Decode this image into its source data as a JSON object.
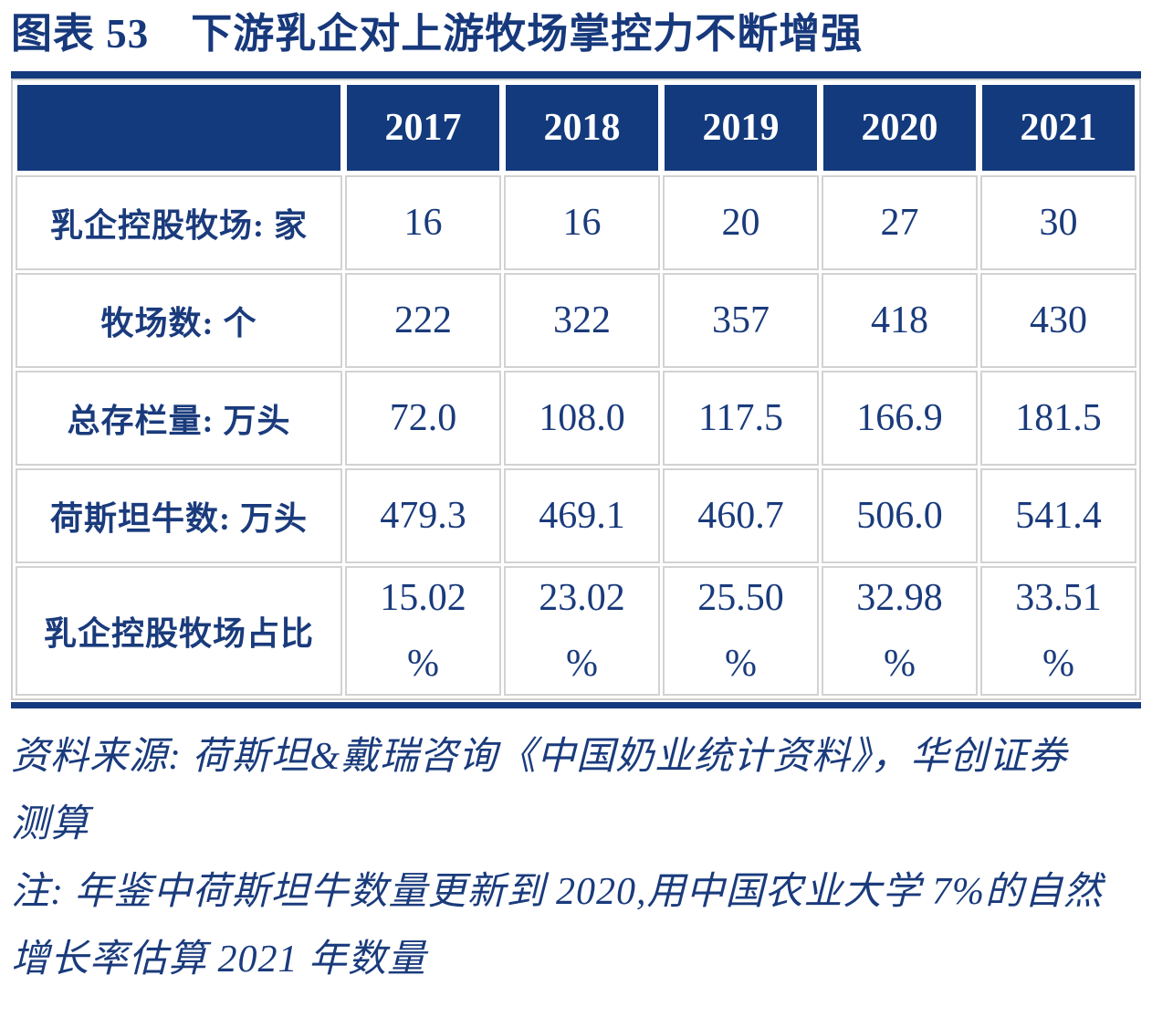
{
  "figure": {
    "label": "图表 53",
    "title": "下游乳企对上游牧场掌控力不断增强"
  },
  "chart_data": {
    "type": "table",
    "title": "下游乳企对上游牧场掌控力不断增强",
    "figure_number": "图表 53",
    "header_row": [
      "2017",
      "2018",
      "2019",
      "2020",
      "2021"
    ],
    "rows": [
      {
        "label": "乳企控股牧场: 家",
        "values": [
          "16",
          "16",
          "20",
          "27",
          "30"
        ]
      },
      {
        "label": "牧场数: 个",
        "values": [
          "222",
          "322",
          "357",
          "418",
          "430"
        ]
      },
      {
        "label": "总存栏量: 万头",
        "values": [
          "72.0",
          "108.0",
          "117.5",
          "166.9",
          "181.5"
        ]
      },
      {
        "label": "荷斯坦牛数: 万头",
        "values": [
          "479.3",
          "469.1",
          "460.7",
          "506.0",
          "541.4"
        ]
      },
      {
        "label": "乳企控股牧场占比",
        "values": [
          "15.02",
          "23.02",
          "25.50",
          "32.98",
          "33.51"
        ],
        "unit_suffix": "%"
      }
    ]
  },
  "notes": {
    "source_line1": "资料来源: 荷斯坦&戴瑞咨询《中国奶业统计资料》，华创证券",
    "source_line2": "测算",
    "note_line1": "注: 年鉴中荷斯坦牛数量更新到 2020,用中国农业大学 7%的自然",
    "note_line2": "增长率估算 2021 年数量"
  },
  "colors": {
    "header_navy": "#133a7c",
    "text_navy": "#1a3b7c",
    "border_gray": "#d2d2d2",
    "rule_navy": "#133a7c",
    "background": "#ffffff"
  }
}
